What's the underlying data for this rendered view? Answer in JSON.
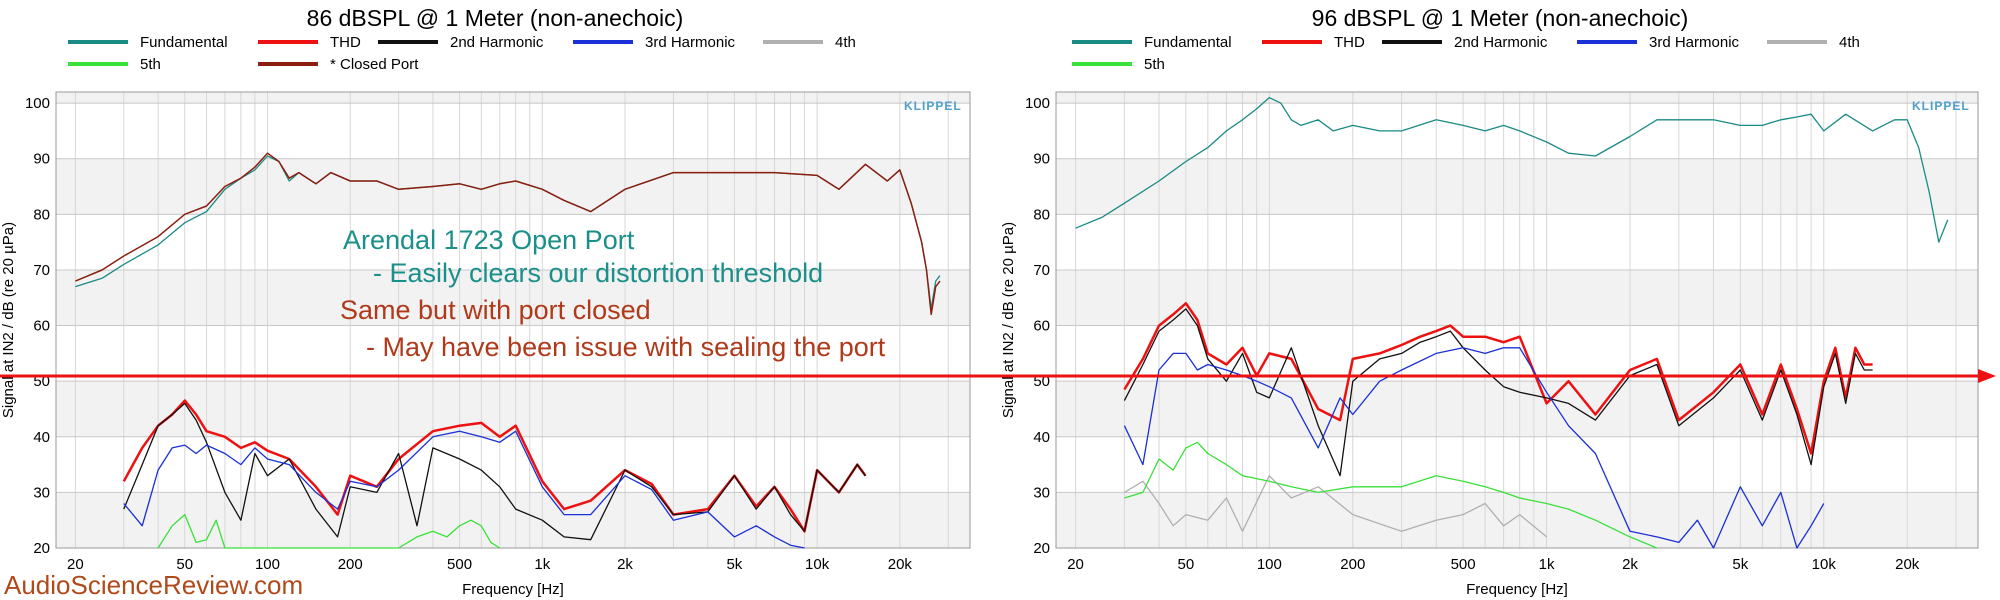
{
  "watermark": "AudioScienceReview.com",
  "threshold_level_db": 50,
  "colors": {
    "fundamental": "#1a8a85",
    "thd": "#ee1111",
    "h2": "#111111",
    "h3": "#1a2fd6",
    "h4": "#b0b0b0",
    "h5": "#39e039",
    "closed_port": "#8b1e0f",
    "threshold_line": "#ee1111",
    "note_teal": "#1b8f8a",
    "note_brown": "#b0391a"
  },
  "notes": {
    "line1": "Arendal 1723 Open Port",
    "line2": "- Easily clears our distortion threshold",
    "line3": "Same but with port closed",
    "line4": "- May have been issue with sealing the port"
  },
  "chart_data": [
    {
      "type": "line",
      "title": "86 dBSPL @ 1 Meter (non-anechoic)",
      "xlabel": "Frequency [Hz]",
      "ylabel": "Signal at IN2 / dB (re 20 µPa)",
      "x_scale": "log",
      "xlim": [
        17,
        36000
      ],
      "ylim": [
        20,
        102
      ],
      "x_ticks": [
        20,
        50,
        100,
        200,
        500,
        1000,
        2000,
        5000,
        10000,
        20000
      ],
      "x_tick_labels": [
        "20",
        "50",
        "100",
        "200",
        "500",
        "1k",
        "2k",
        "5k",
        "10k",
        "20k"
      ],
      "y_ticks": [
        20,
        30,
        40,
        50,
        60,
        70,
        80,
        90,
        100
      ],
      "legend": [
        "Fundamental",
        "THD",
        "2nd Harmonic",
        "3rd Harmonic",
        "4th",
        "5th",
        "* Closed Port"
      ],
      "legend_position": "top-left",
      "watermark_logo": "KLIPPEL",
      "series": [
        {
          "name": "Fundamental",
          "color_key": "fundamental",
          "x": [
            20,
            25,
            30,
            40,
            50,
            60,
            70,
            80,
            90,
            100,
            110,
            120,
            130,
            150,
            170,
            200,
            250,
            300,
            400,
            500,
            600,
            700,
            800,
            1000,
            1200,
            1500,
            2000,
            3000,
            4000,
            5000,
            7000,
            10000,
            12000,
            15000,
            18000,
            20000,
            22000,
            24000,
            25000,
            26000,
            27000,
            28000
          ],
          "y": [
            67,
            68.5,
            71,
            74.5,
            78.5,
            80.5,
            84.5,
            86.5,
            88,
            90.5,
            89.5,
            86,
            87.5,
            85.5,
            87.5,
            86,
            86,
            84.5,
            85,
            85.5,
            84.5,
            85.5,
            86,
            84.5,
            82.5,
            80.5,
            84.5,
            87.5,
            87.5,
            87.5,
            87.5,
            87,
            84.5,
            89,
            86,
            88,
            82,
            75,
            70,
            63,
            68,
            69
          ]
        },
        {
          "name": "* Closed Port",
          "color_key": "closed_port",
          "x": [
            20,
            25,
            30,
            40,
            50,
            60,
            70,
            80,
            90,
            100,
            110,
            120,
            130,
            150,
            170,
            200,
            250,
            300,
            400,
            500,
            600,
            700,
            800,
            1000,
            1200,
            1500,
            2000,
            3000,
            4000,
            5000,
            7000,
            10000,
            12000,
            15000,
            18000,
            20000,
            22000,
            24000,
            25000,
            26000,
            27000,
            28000
          ],
          "y": [
            68,
            70,
            72.5,
            76,
            80,
            81.5,
            85,
            86.5,
            88.5,
            91,
            89.5,
            86.5,
            87.5,
            85.5,
            87.5,
            86,
            86,
            84.5,
            85,
            85.5,
            84.5,
            85.5,
            86,
            84.5,
            82.5,
            80.5,
            84.5,
            87.5,
            87.5,
            87.5,
            87.5,
            87,
            84.5,
            89,
            86,
            88,
            82,
            75,
            70,
            62,
            67,
            68
          ]
        },
        {
          "name": "THD",
          "color_key": "thd",
          "x": [
            30,
            35,
            40,
            45,
            50,
            55,
            60,
            70,
            80,
            90,
            100,
            120,
            150,
            180,
            200,
            250,
            300,
            400,
            500,
            600,
            700,
            800,
            1000,
            1200,
            1500,
            2000,
            2500,
            3000,
            4000,
            5000,
            6000,
            7000,
            8000,
            9000,
            10000,
            12000,
            14000,
            15000
          ],
          "y": [
            32,
            38,
            42,
            44,
            46.5,
            44,
            41,
            40,
            38,
            39,
            37.5,
            36,
            31,
            26,
            33,
            31,
            36,
            41,
            42,
            42.5,
            40,
            42,
            32,
            27,
            28.5,
            34,
            31.5,
            26,
            27,
            33,
            27.5,
            31,
            27,
            23,
            34,
            30,
            35,
            33
          ]
        },
        {
          "name": "2nd Harmonic",
          "color_key": "h2",
          "x": [
            30,
            35,
            40,
            45,
            50,
            55,
            60,
            70,
            80,
            90,
            100,
            120,
            150,
            180,
            200,
            250,
            300,
            350,
            400,
            500,
            600,
            700,
            800,
            1000,
            1200,
            1500,
            2000,
            2500,
            3000,
            4000,
            5000,
            6000,
            7000,
            8000,
            9000,
            10000,
            12000,
            14000,
            15000
          ],
          "y": [
            27,
            35,
            42,
            44,
            46,
            43,
            39,
            30,
            25,
            37,
            33,
            36,
            27,
            22,
            31,
            30,
            37,
            24,
            38,
            36,
            34,
            31,
            27,
            25,
            22,
            21.5,
            34,
            31,
            26,
            26.5,
            33,
            27,
            31,
            26,
            23,
            34,
            30,
            35,
            33
          ]
        },
        {
          "name": "3rd Harmonic",
          "color_key": "h3",
          "x": [
            30,
            35,
            40,
            45,
            50,
            55,
            60,
            70,
            80,
            90,
            100,
            120,
            150,
            180,
            200,
            250,
            300,
            400,
            500,
            600,
            700,
            800,
            1000,
            1200,
            1500,
            2000,
            2500,
            3000,
            4000,
            5000,
            6000,
            7000,
            8000,
            9000
          ],
          "y": [
            28,
            24,
            34,
            38,
            38.5,
            37,
            38.5,
            37,
            35,
            38,
            36,
            35,
            30,
            27,
            32,
            31,
            34,
            40,
            41,
            40,
            39,
            41,
            31,
            26,
            26,
            33,
            30.5,
            25,
            26.5,
            22,
            24,
            22,
            20.5,
            20
          ]
        },
        {
          "name": "5th",
          "color_key": "h5",
          "x": [
            40,
            45,
            50,
            55,
            60,
            65,
            70,
            80,
            300,
            350,
            400,
            450,
            500,
            550,
            600,
            650,
            700
          ],
          "y": [
            20,
            24,
            26,
            21,
            21.5,
            25,
            20,
            20,
            20,
            22,
            23,
            22,
            24,
            25,
            24,
            21,
            20
          ]
        }
      ]
    },
    {
      "type": "line",
      "title": "96 dBSPL @ 1 Meter (non-anechoic)",
      "xlabel": "Frequency [Hz]",
      "ylabel": "Signal at IN2 / dB (re 20 µPa)",
      "x_scale": "log",
      "xlim": [
        17,
        36000
      ],
      "ylim": [
        20,
        102
      ],
      "x_ticks": [
        20,
        50,
        100,
        200,
        500,
        1000,
        2000,
        5000,
        10000,
        20000
      ],
      "x_tick_labels": [
        "20",
        "50",
        "100",
        "200",
        "500",
        "1k",
        "2k",
        "5k",
        "10k",
        "20k"
      ],
      "y_ticks": [
        20,
        30,
        40,
        50,
        60,
        70,
        80,
        90,
        100
      ],
      "legend": [
        "Fundamental",
        "THD",
        "2nd Harmonic",
        "3rd Harmonic",
        "4th",
        "5th"
      ],
      "legend_position": "top-left",
      "watermark_logo": "KLIPPEL",
      "series": [
        {
          "name": "Fundamental",
          "color_key": "fundamental",
          "x": [
            20,
            25,
            30,
            40,
            50,
            60,
            70,
            80,
            90,
            100,
            110,
            120,
            130,
            150,
            170,
            200,
            250,
            300,
            400,
            500,
            600,
            700,
            800,
            1000,
            1200,
            1500,
            2000,
            2500,
            3000,
            4000,
            5000,
            6000,
            7000,
            8000,
            9000,
            10000,
            12000,
            15000,
            18000,
            20000,
            22000,
            24000,
            26000,
            28000
          ],
          "y": [
            77.5,
            79.5,
            82,
            86,
            89.5,
            92,
            95,
            97,
            99,
            101,
            100,
            97,
            96,
            97,
            95,
            96,
            95,
            95,
            97,
            96,
            95,
            96,
            95,
            93,
            91,
            90.5,
            94,
            97,
            97,
            97,
            96,
            96,
            97,
            97.5,
            98,
            95,
            98,
            95,
            97,
            97,
            92,
            84,
            75,
            79
          ]
        },
        {
          "name": "THD",
          "color_key": "thd",
          "x": [
            30,
            35,
            40,
            45,
            50,
            55,
            60,
            70,
            80,
            90,
            100,
            120,
            150,
            180,
            200,
            250,
            300,
            350,
            400,
            450,
            500,
            600,
            700,
            800,
            1000,
            1200,
            1500,
            2000,
            2500,
            3000,
            4000,
            5000,
            6000,
            7000,
            8000,
            9000,
            10000,
            11000,
            12000,
            13000,
            14000,
            15000
          ],
          "y": [
            48.5,
            54,
            60,
            62,
            64,
            61,
            55,
            53,
            56,
            51,
            55,
            54,
            45,
            43,
            54,
            55,
            56.5,
            58,
            59,
            60,
            58,
            58,
            57,
            58,
            46,
            50,
            44,
            52,
            54,
            43,
            48,
            53,
            44,
            53,
            45,
            37,
            50,
            56,
            47,
            56,
            53,
            53
          ]
        },
        {
          "name": "2nd Harmonic",
          "color_key": "h2",
          "x": [
            30,
            35,
            40,
            45,
            50,
            55,
            60,
            70,
            80,
            90,
            100,
            120,
            150,
            180,
            200,
            250,
            300,
            350,
            400,
            450,
            500,
            600,
            700,
            800,
            1000,
            1200,
            1500,
            2000,
            2500,
            3000,
            4000,
            5000,
            6000,
            7000,
            8000,
            9000,
            10000,
            11000,
            12000,
            13000,
            14000,
            15000
          ],
          "y": [
            46.5,
            53,
            59,
            61,
            63,
            60,
            54,
            50,
            55,
            48,
            47,
            56,
            42,
            33,
            50,
            54,
            55,
            57,
            58,
            59,
            56,
            52,
            49,
            48,
            47,
            46,
            43,
            51,
            53,
            42,
            47,
            52,
            43,
            52,
            44,
            35,
            49,
            55,
            46,
            55,
            52,
            52
          ]
        },
        {
          "name": "3rd Harmonic",
          "color_key": "h3",
          "x": [
            30,
            35,
            40,
            45,
            50,
            55,
            60,
            70,
            80,
            90,
            100,
            120,
            150,
            180,
            200,
            250,
            300,
            400,
            500,
            600,
            700,
            800,
            1000,
            1200,
            1500,
            2000,
            2500,
            3000,
            3500,
            4000,
            5000,
            6000,
            7000,
            8000,
            9000,
            10000
          ],
          "y": [
            42,
            35,
            52,
            55,
            55,
            52,
            53,
            52,
            51,
            50,
            49,
            47,
            38,
            47,
            44,
            50,
            52,
            55,
            56,
            55,
            56,
            56,
            48,
            42,
            37,
            23,
            22,
            21,
            25,
            20,
            31,
            24,
            30,
            20,
            24,
            28
          ]
        },
        {
          "name": "4th",
          "color_key": "h4",
          "x": [
            30,
            35,
            40,
            45,
            50,
            60,
            70,
            80,
            100,
            120,
            150,
            200,
            300,
            400,
            500,
            600,
            700,
            800,
            1000
          ],
          "y": [
            30,
            32,
            28,
            24,
            26,
            25,
            29,
            23,
            33,
            29,
            31,
            26,
            23,
            25,
            26,
            28,
            24,
            26,
            22
          ]
        },
        {
          "name": "5th",
          "color_key": "h5",
          "x": [
            30,
            35,
            40,
            45,
            50,
            55,
            60,
            70,
            80,
            100,
            120,
            150,
            200,
            300,
            400,
            500,
            600,
            700,
            800,
            1000,
            1200,
            1500,
            2000,
            2500
          ],
          "y": [
            29,
            30,
            36,
            34,
            38,
            39,
            37,
            35,
            33,
            32,
            31,
            30,
            31,
            31,
            33,
            32,
            31,
            30,
            29,
            28,
            27,
            25,
            22,
            20
          ]
        }
      ]
    }
  ]
}
